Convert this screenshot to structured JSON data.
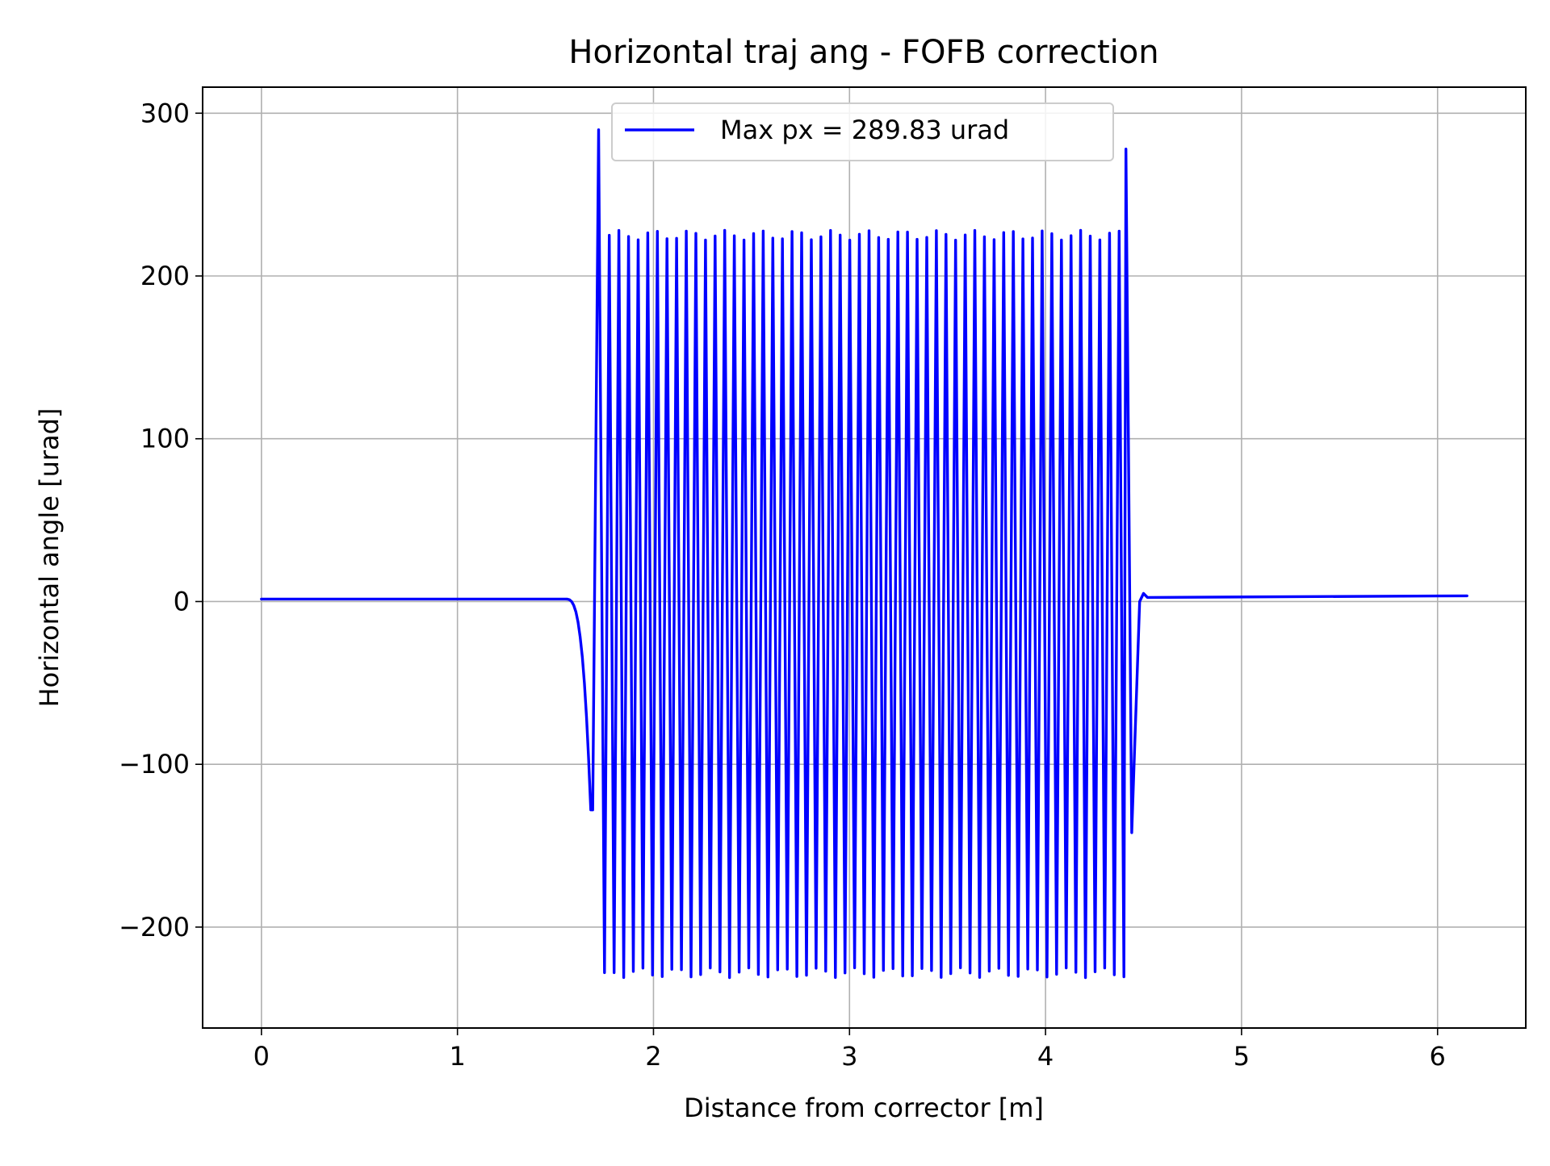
{
  "chart_data": {
    "type": "line",
    "title": "Horizontal traj ang - FOFB correction",
    "xlabel": "Distance from corrector [m]",
    "ylabel": "Horizontal angle [urad]",
    "xlim": [
      -0.3,
      6.45
    ],
    "ylim": [
      -262,
      316
    ],
    "xticks": [
      0,
      1,
      2,
      3,
      4,
      5,
      6
    ],
    "yticks": [
      -200,
      -100,
      0,
      100,
      200,
      300
    ],
    "xtick_labels": [
      "0",
      "1",
      "2",
      "3",
      "4",
      "5",
      "6"
    ],
    "ytick_labels": [
      "−200",
      "−100",
      "0",
      "100",
      "200",
      "300"
    ],
    "grid": true,
    "legend_position": "top-center",
    "series": [
      {
        "name": "Max px = 289.83 urad",
        "color": "#0000ff",
        "baseline_left": {
          "x_start": 0.0,
          "x_end": 1.55,
          "value": 1.5
        },
        "dip_entry": {
          "x": 1.69,
          "value": -128
        },
        "peak_entry": {
          "x": 1.72,
          "value": 289.83
        },
        "oscillation": {
          "x_start": 1.75,
          "x_end": 4.4,
          "cycles": 54,
          "upper": 225,
          "lower": -228
        },
        "peak_exit": {
          "x": 4.41,
          "value": 278
        },
        "dip_exit": {
          "x": 4.44,
          "value": -142
        },
        "baseline_right": {
          "x_start": 4.52,
          "x_end": 6.15,
          "value": 3.5
        }
      }
    ]
  }
}
